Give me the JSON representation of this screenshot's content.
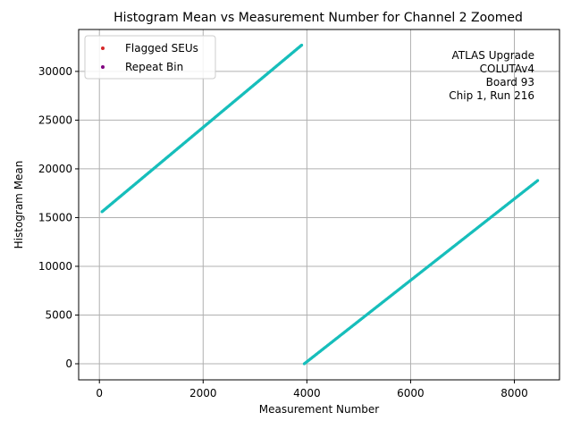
{
  "chart_data": {
    "type": "scatter",
    "title": "Histogram Mean vs Measurement Number for Channel 2 Zoomed",
    "xlabel": "Measurement Number",
    "ylabel": "Histogram Mean",
    "xlim": [
      -400,
      8870
    ],
    "ylim": [
      -1650,
      34300
    ],
    "xticks": [
      0,
      2000,
      4000,
      6000,
      8000
    ],
    "xtick_labels": [
      "0",
      "2000",
      "4000",
      "6000",
      "8000"
    ],
    "yticks": [
      0,
      5000,
      10000,
      15000,
      20000,
      25000,
      30000
    ],
    "ytick_labels": [
      "0",
      "5000",
      "10000",
      "15000",
      "20000",
      "25000",
      "30000"
    ],
    "grid": true,
    "legend_position": "top-left",
    "series": [
      {
        "name": "Flagged SEUs",
        "color": "#d62728",
        "points": []
      },
      {
        "name": "Repeat Bin",
        "color": "#800080",
        "points": []
      },
      {
        "color": "#17bebb",
        "segments": [
          {
            "x": [
              50,
              3900
            ],
            "y": [
              15600,
              32700
            ]
          },
          {
            "x": [
              3950,
              8450
            ],
            "y": [
              0,
              18800
            ]
          }
        ]
      }
    ],
    "annotation": [
      "ATLAS Upgrade",
      "COLUTAv4",
      "Board 93",
      "Chip 1, Run 216"
    ]
  }
}
